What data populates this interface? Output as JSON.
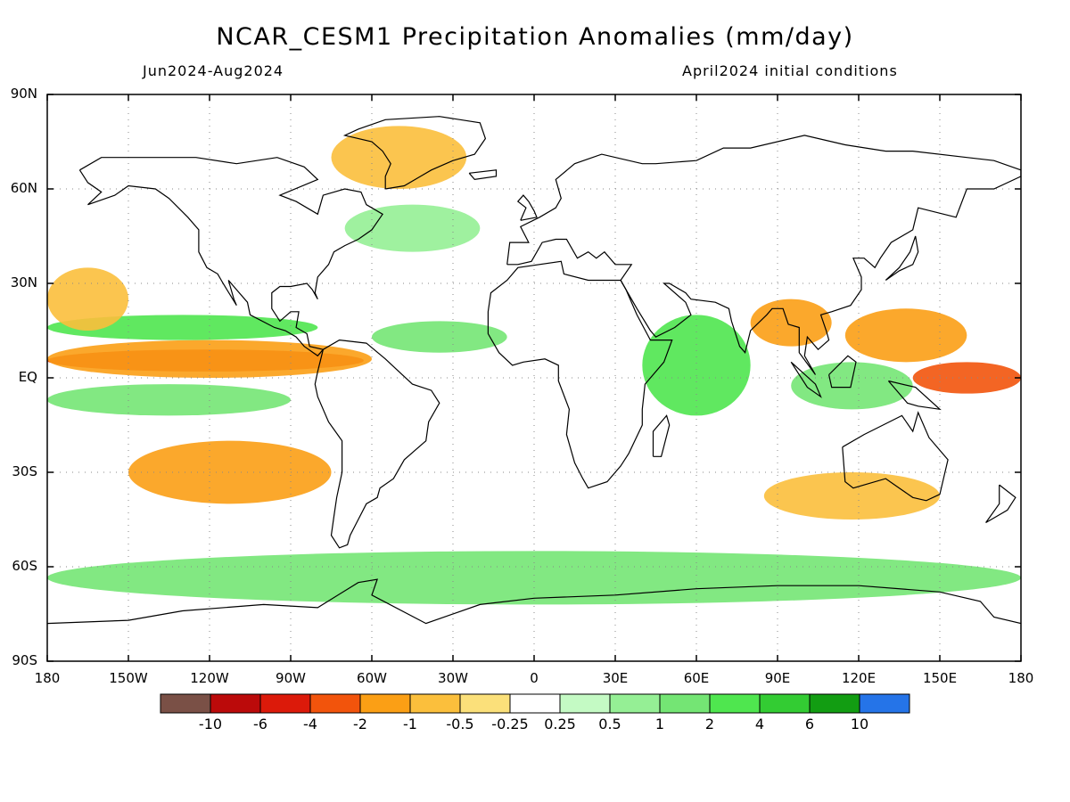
{
  "title": "NCAR_CESM1 Precipitation Anomalies (mm/day)",
  "period": "Jun2024-Aug2024",
  "init": "April2024 initial conditions",
  "lat_labels": [
    "90N",
    "60N",
    "30N",
    "EQ",
    "30S",
    "60S",
    "90S"
  ],
  "lon_labels": [
    "180",
    "150W",
    "120W",
    "90W",
    "60W",
    "30W",
    "0",
    "30E",
    "60E",
    "90E",
    "120E",
    "150E",
    "180"
  ],
  "colorbar": {
    "colors": [
      "#7a5046",
      "#bb0a0a",
      "#dc1a0a",
      "#f2540c",
      "#fb9f15",
      "#fbbf3c",
      "#fbe07a",
      "#ffffff",
      "#c4fac4",
      "#95ef95",
      "#74e574",
      "#4fe64f",
      "#33cc33",
      "#129d12",
      "#2574e8"
    ],
    "labels": [
      "-10",
      "-6",
      "-4",
      "-2",
      "-1",
      "-0.5",
      "-0.25",
      "0.25",
      "0.5",
      "1",
      "2",
      "4",
      "6",
      "10"
    ]
  },
  "map_data": {
    "lat_range": [
      -90,
      90
    ],
    "lon_range": [
      -180,
      180
    ],
    "anomaly_regions": [
      {
        "name": "eq-pacific-dry-core",
        "lon": [
          -180,
          -63
        ],
        "lat": [
          2,
          9
        ],
        "level": -4
      },
      {
        "name": "eq-pacific-dry-band",
        "lon": [
          -180,
          -60
        ],
        "lat": [
          0,
          12
        ],
        "level": -1
      },
      {
        "name": "eq-pacific-wet-north",
        "lon": [
          -180,
          -80
        ],
        "lat": [
          12,
          20
        ],
        "level": 2
      },
      {
        "name": "eq-pacific-wet-south",
        "lon": [
          -180,
          -90
        ],
        "lat": [
          -12,
          -2
        ],
        "level": 1
      },
      {
        "name": "south-pacific-dry",
        "lon": [
          -150,
          -75
        ],
        "lat": [
          -40,
          -20
        ],
        "level": -1
      },
      {
        "name": "subtropical-npac-dry",
        "lon": [
          -180,
          -150
        ],
        "lat": [
          15,
          35
        ],
        "level": -0.5
      },
      {
        "name": "west-pacific-dry",
        "lon": [
          140,
          180
        ],
        "lat": [
          -5,
          5
        ],
        "level": -2
      },
      {
        "name": "philippine-sea-dry",
        "lon": [
          115,
          160
        ],
        "lat": [
          5,
          22
        ],
        "level": -1
      },
      {
        "name": "bay-of-bengal-dry",
        "lon": [
          80,
          110
        ],
        "lat": [
          10,
          25
        ],
        "level": -1
      },
      {
        "name": "indian-ocean-wet",
        "lon": [
          40,
          80
        ],
        "lat": [
          -12,
          20
        ],
        "level": 2
      },
      {
        "name": "maritime-continent-wet",
        "lon": [
          95,
          140
        ],
        "lat": [
          -10,
          5
        ],
        "level": 1
      },
      {
        "name": "southern-ocean-wet",
        "lon": [
          -180,
          180
        ],
        "lat": [
          -72,
          -55
        ],
        "level": 1
      },
      {
        "name": "south-indian-dry",
        "lon": [
          85,
          150
        ],
        "lat": [
          -45,
          -30
        ],
        "level": -0.5
      },
      {
        "name": "atlantic-itcz-wet",
        "lon": [
          -60,
          -10
        ],
        "lat": [
          8,
          18
        ],
        "level": 1
      },
      {
        "name": "greenland-dry",
        "lon": [
          -75,
          -25
        ],
        "lat": [
          60,
          80
        ],
        "level": -0.5
      },
      {
        "name": "north-atlantic-wet",
        "lon": [
          -70,
          -20
        ],
        "lat": [
          40,
          55
        ],
        "level": 0.5
      }
    ]
  }
}
